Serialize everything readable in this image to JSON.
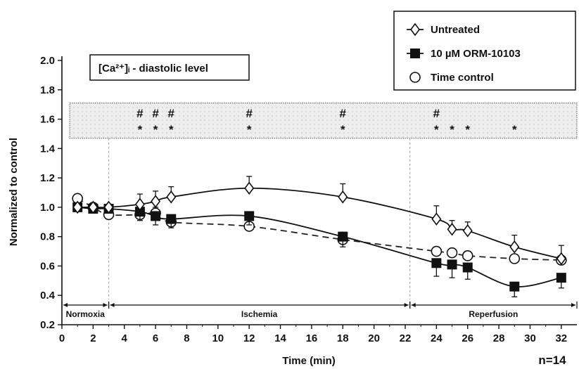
{
  "chart_data": {
    "type": "line",
    "inset_label": "[Ca²⁺]ᵢ - diastolic level",
    "xlabel": "Time (min)",
    "ylabel": "Normalized to control",
    "xlim": [
      0,
      33
    ],
    "ylim": [
      0.2,
      2.0
    ],
    "x_ticks": [
      0,
      2,
      4,
      6,
      8,
      10,
      12,
      14,
      16,
      18,
      20,
      22,
      24,
      26,
      28,
      30,
      32
    ],
    "y_ticks": [
      0.2,
      0.4,
      0.6,
      0.8,
      1.0,
      1.2,
      1.4,
      1.6,
      1.8,
      2.0
    ],
    "x_tick_labels": [
      "0",
      "2",
      "4",
      "6",
      "8",
      "10",
      "12",
      "14",
      "16",
      "18",
      "20",
      "22",
      "24",
      "26",
      "28",
      "30",
      "32"
    ],
    "y_tick_labels": [
      "0.2",
      "0.4",
      "0.6",
      "0.8",
      "1.0",
      "1.2",
      "1.4",
      "1.6",
      "1.8",
      "2.0"
    ],
    "series": [
      {
        "name": "Untreated",
        "marker": "diamond-open",
        "line": "solid",
        "points": [
          {
            "x": 1,
            "y": 1.0,
            "err": 0
          },
          {
            "x": 2,
            "y": 1.0,
            "err": 0
          },
          {
            "x": 3,
            "y": 1.0,
            "err": 0
          },
          {
            "x": 5,
            "y": 1.02,
            "err": 0.07
          },
          {
            "x": 6,
            "y": 1.04,
            "err": 0.07
          },
          {
            "x": 7,
            "y": 1.07,
            "err": 0.07
          },
          {
            "x": 12,
            "y": 1.13,
            "err": 0.08
          },
          {
            "x": 18,
            "y": 1.07,
            "err": 0.09
          },
          {
            "x": 24,
            "y": 0.92,
            "err": 0.09
          },
          {
            "x": 25,
            "y": 0.85,
            "err": 0.06
          },
          {
            "x": 26,
            "y": 0.84,
            "err": 0.06
          },
          {
            "x": 29,
            "y": 0.73,
            "err": 0.08
          },
          {
            "x": 32,
            "y": 0.65,
            "err": 0.09
          }
        ]
      },
      {
        "name": "10 µM ORM-10103",
        "marker": "square-filled",
        "line": "solid",
        "points": [
          {
            "x": 1,
            "y": 1.0,
            "err": 0
          },
          {
            "x": 2,
            "y": 0.99,
            "err": 0
          },
          {
            "x": 3,
            "y": 0.99,
            "err": 0
          },
          {
            "x": 5,
            "y": 0.97,
            "err": 0.06
          },
          {
            "x": 6,
            "y": 0.94,
            "err": 0.06
          },
          {
            "x": 7,
            "y": 0.92,
            "err": 0.06
          },
          {
            "x": 12,
            "y": 0.94,
            "err": 0.06
          },
          {
            "x": 18,
            "y": 0.8,
            "err": 0.07
          },
          {
            "x": 24,
            "y": 0.62,
            "err": 0.09
          },
          {
            "x": 25,
            "y": 0.61,
            "err": 0.09
          },
          {
            "x": 26,
            "y": 0.59,
            "err": 0.08
          },
          {
            "x": 29,
            "y": 0.46,
            "err": 0.07
          },
          {
            "x": 32,
            "y": 0.52,
            "err": 0.07
          }
        ]
      },
      {
        "name": "Time control",
        "marker": "circle-open",
        "line": "dashed",
        "points": [
          {
            "x": 1,
            "y": 1.06,
            "err": 0
          },
          {
            "x": 2,
            "y": 1.0,
            "err": 0
          },
          {
            "x": 3,
            "y": 0.95,
            "err": 0
          },
          {
            "x": 5,
            "y": 0.95,
            "err": 0.04
          },
          {
            "x": 6,
            "y": 0.96,
            "err": 0.04
          },
          {
            "x": 7,
            "y": 0.9,
            "err": 0.04
          },
          {
            "x": 12,
            "y": 0.87,
            "err": 0.03
          },
          {
            "x": 18,
            "y": 0.78,
            "err": 0.05
          },
          {
            "x": 24,
            "y": 0.7,
            "err": 0.03
          },
          {
            "x": 25,
            "y": 0.69,
            "err": 0.03
          },
          {
            "x": 26,
            "y": 0.67,
            "err": 0.03
          },
          {
            "x": 29,
            "y": 0.65,
            "err": 0.03
          },
          {
            "x": 32,
            "y": 0.64,
            "err": 0.03
          }
        ]
      }
    ],
    "phases": [
      {
        "label": "Normoxia",
        "start": 0,
        "end": 3
      },
      {
        "label": "Ischemia",
        "start": 3,
        "end": 22.3
      },
      {
        "label": "Reperfusion",
        "start": 22.3,
        "end": 33
      }
    ],
    "phase_boundaries": [
      3,
      22.3
    ],
    "significance": {
      "hash_symbol": "#",
      "star_symbol": "*",
      "hash_x": [
        5,
        6,
        7,
        12,
        18,
        24
      ],
      "star_x": [
        5,
        6,
        7,
        12,
        18,
        24,
        25,
        26,
        29
      ]
    },
    "sample_size": "n=14",
    "grid": false,
    "legend_position": "top-right",
    "colors": {
      "line": "#111111",
      "dashed_line": "#222222",
      "open_marker_fill": "#ffffff",
      "filled_marker": "#111111",
      "significance_band": "#eeeeee",
      "boundary_line": "#aaaaaa"
    }
  }
}
